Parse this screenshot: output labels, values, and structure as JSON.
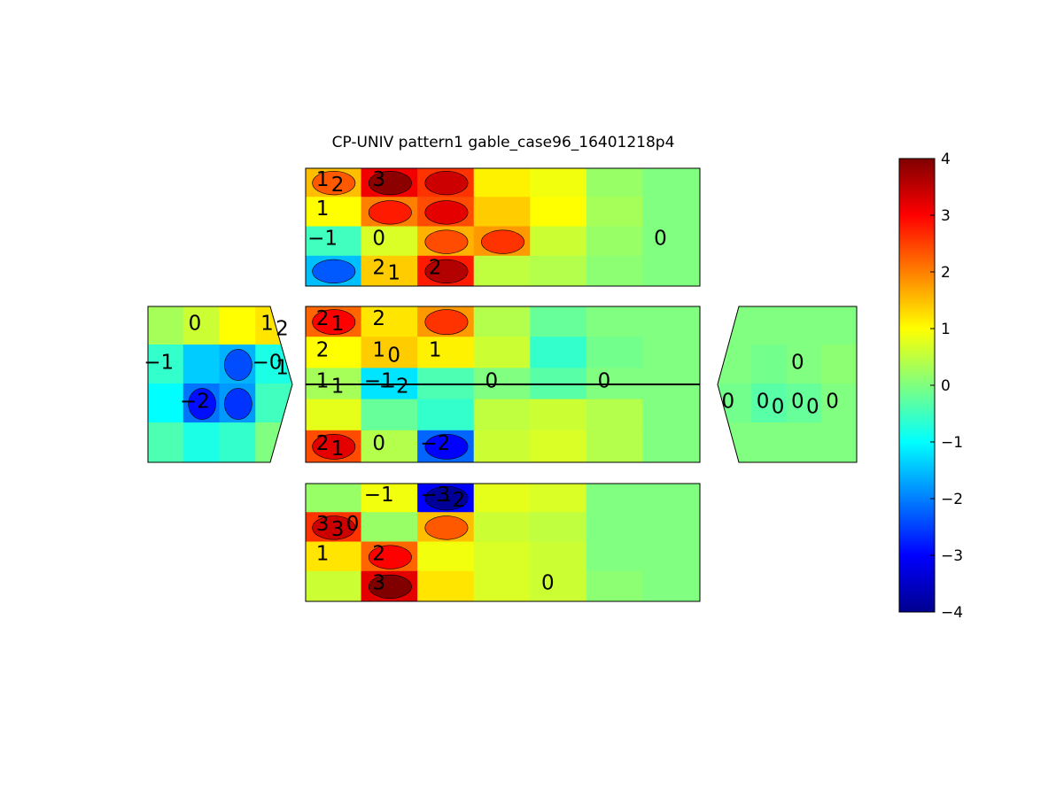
{
  "chart_data": {
    "type": "heatmap",
    "subtype": "filled-contour",
    "title": "CP-UNIV pattern1 gable_case96_16401218p4",
    "colormap": "jet",
    "colorbar": {
      "location": "right",
      "ticks": [
        "4",
        "3",
        "2",
        "1",
        "0",
        "−1",
        "−2",
        "−3",
        "−4"
      ],
      "range": [
        -4,
        4
      ]
    },
    "panels": [
      {
        "name": "top-roof",
        "shape": "rect",
        "levels": [
          [
            [
              0,
              1.5
            ],
            [
              1,
              3.1
            ],
            [
              2,
              2.6
            ],
            [
              3,
              1.1
            ],
            [
              4,
              0.9
            ],
            [
              5,
              0.2
            ],
            [
              6,
              0.0
            ]
          ],
          [
            [
              0,
              1.0
            ],
            [
              1,
              2.0
            ],
            [
              2,
              2.4
            ],
            [
              3,
              1.4
            ],
            [
              4,
              1.0
            ],
            [
              5,
              0.3
            ],
            [
              6,
              0.0
            ]
          ],
          [
            [
              0,
              -0.5
            ],
            [
              1,
              0.7
            ],
            [
              2,
              1.6
            ],
            [
              3,
              1.8
            ],
            [
              4,
              0.6
            ],
            [
              5,
              0.2
            ],
            [
              6,
              0.0
            ]
          ],
          [
            [
              0,
              -1.5
            ],
            [
              1,
              1.4
            ],
            [
              2,
              2.8
            ],
            [
              3,
              0.5
            ],
            [
              4,
              0.4
            ],
            [
              5,
              0.1
            ],
            [
              6,
              0.0
            ]
          ]
        ],
        "labels": [
          {
            "text": "1",
            "col": 0,
            "row": 0
          },
          {
            "text": "2",
            "col": 0,
            "row": 0
          },
          {
            "text": "3",
            "col": 1,
            "row": 0
          },
          {
            "text": "1",
            "col": 0,
            "row": 1
          },
          {
            "text": "−1",
            "col": 0,
            "row": 2
          },
          {
            "text": "0",
            "col": 1,
            "row": 2
          },
          {
            "text": "2",
            "col": 1,
            "row": 3
          },
          {
            "text": "1",
            "col": 1,
            "row": 3
          },
          {
            "text": "2",
            "col": 2,
            "row": 3
          },
          {
            "text": "0",
            "col": 6,
            "row": 2
          }
        ]
      },
      {
        "name": "middle-roof",
        "shape": "rect",
        "levels": [
          [
            [
              0,
              2.2
            ],
            [
              1,
              1.2
            ],
            [
              2,
              1.8
            ],
            [
              3,
              0.4
            ],
            [
              4,
              -0.2
            ],
            [
              5,
              0.0
            ],
            [
              6,
              0.0
            ]
          ],
          [
            [
              0,
              1.0
            ],
            [
              1,
              1.4
            ],
            [
              2,
              1.1
            ],
            [
              3,
              0.6
            ],
            [
              4,
              -0.6
            ],
            [
              5,
              -0.1
            ],
            [
              6,
              0.0
            ]
          ],
          [
            [
              0,
              0.3
            ],
            [
              1,
              -1.2
            ],
            [
              2,
              -0.4
            ],
            [
              3,
              0.0
            ],
            [
              4,
              -0.3
            ],
            [
              5,
              0.0
            ],
            [
              6,
              0.0
            ]
          ],
          [
            [
              0,
              0.8
            ],
            [
              1,
              -0.2
            ],
            [
              2,
              -0.6
            ],
            [
              3,
              0.5
            ],
            [
              4,
              0.6
            ],
            [
              5,
              0.4
            ],
            [
              6,
              0.0
            ]
          ],
          [
            [
              0,
              2.4
            ],
            [
              1,
              0.4
            ],
            [
              2,
              -2.2
            ],
            [
              3,
              0.6
            ],
            [
              4,
              0.7
            ],
            [
              5,
              0.4
            ],
            [
              6,
              0.0
            ]
          ]
        ],
        "labels": [
          {
            "text": "2",
            "col": 0,
            "row": 0
          },
          {
            "text": "1",
            "col": 0,
            "row": 0
          },
          {
            "text": "2",
            "col": 1,
            "row": 0
          },
          {
            "text": "2",
            "col": 0,
            "row": 1
          },
          {
            "text": "1",
            "col": 1,
            "row": 1
          },
          {
            "text": "0",
            "col": 1,
            "row": 1
          },
          {
            "text": "1",
            "col": 2,
            "row": 1
          },
          {
            "text": "−1",
            "col": 1,
            "row": 2
          },
          {
            "text": "−2",
            "col": 1,
            "row": 2
          },
          {
            "text": "1",
            "col": 0,
            "row": 2
          },
          {
            "text": "1",
            "col": 0,
            "row": 2
          },
          {
            "text": "0",
            "col": 3,
            "row": 2
          },
          {
            "text": "0",
            "col": 5,
            "row": 2
          },
          {
            "text": "2",
            "col": 0,
            "row": 4
          },
          {
            "text": "1",
            "col": 0,
            "row": 4
          },
          {
            "text": "0",
            "col": 1,
            "row": 4
          },
          {
            "text": "−2",
            "col": 2,
            "row": 4
          }
        ]
      },
      {
        "name": "bottom-roof",
        "shape": "rect",
        "levels": [
          [
            [
              0,
              0.2
            ],
            [
              1,
              0.9
            ],
            [
              2,
              -3.0
            ],
            [
              3,
              0.8
            ],
            [
              4,
              0.7
            ],
            [
              5,
              0.0
            ],
            [
              6,
              0.0
            ]
          ],
          [
            [
              0,
              2.6
            ],
            [
              1,
              0.2
            ],
            [
              2,
              1.5
            ],
            [
              3,
              0.6
            ],
            [
              4,
              0.5
            ],
            [
              5,
              0.0
            ],
            [
              6,
              0.0
            ]
          ],
          [
            [
              0,
              1.2
            ],
            [
              1,
              2.2
            ],
            [
              2,
              0.9
            ],
            [
              3,
              0.7
            ],
            [
              4,
              0.6
            ],
            [
              5,
              0.0
            ],
            [
              6,
              0.0
            ]
          ],
          [
            [
              0,
              0.6
            ],
            [
              1,
              3.2
            ],
            [
              2,
              1.2
            ],
            [
              3,
              0.7
            ],
            [
              4,
              0.6
            ],
            [
              5,
              0.1
            ],
            [
              6,
              0.0
            ]
          ]
        ],
        "labels": [
          {
            "text": "−1",
            "col": 1,
            "row": 0
          },
          {
            "text": "−3",
            "col": 2,
            "row": 0
          },
          {
            "text": "−2",
            "col": 2,
            "row": 0
          },
          {
            "text": "3",
            "col": 0,
            "row": 1
          },
          {
            "text": "3",
            "col": 0,
            "row": 1
          },
          {
            "text": "0",
            "col": 0,
            "row": 1
          },
          {
            "text": "1",
            "col": 0,
            "row": 2
          },
          {
            "text": "2",
            "col": 1,
            "row": 2
          },
          {
            "text": "3",
            "col": 1,
            "row": 3
          },
          {
            "text": "0",
            "col": 4,
            "row": 3
          }
        ]
      },
      {
        "name": "left-gable",
        "shape": "pentagon-left",
        "levels": [
          [
            [
              0,
              0.3
            ],
            [
              1,
              0.6
            ],
            [
              2,
              1.0
            ],
            [
              3,
              1.2
            ]
          ],
          [
            [
              0,
              -0.6
            ],
            [
              1,
              -1.4
            ],
            [
              2,
              -1.6
            ],
            [
              3,
              -0.8
            ]
          ],
          [
            [
              0,
              -1.0
            ],
            [
              1,
              -2.1
            ],
            [
              2,
              -1.8
            ],
            [
              3,
              -0.5
            ]
          ],
          [
            [
              0,
              -0.4
            ],
            [
              1,
              -0.8
            ],
            [
              2,
              -0.6
            ],
            [
              3,
              0.0
            ]
          ]
        ],
        "labels": [
          {
            "text": "0",
            "col": 1,
            "row": 0
          },
          {
            "text": "1",
            "col": 3,
            "row": 0
          },
          {
            "text": "2",
            "col": 3,
            "row": 0
          },
          {
            "text": "−1",
            "col": 0,
            "row": 1
          },
          {
            "text": "−0",
            "col": 3,
            "row": 1
          },
          {
            "text": "1",
            "col": 3,
            "row": 1
          },
          {
            "text": "−2",
            "col": 1,
            "row": 2
          }
        ]
      },
      {
        "name": "right-gable",
        "shape": "pentagon-right",
        "levels": [
          [
            [
              0,
              0.0
            ],
            [
              1,
              0.0
            ],
            [
              2,
              0.0
            ],
            [
              3,
              0.0
            ]
          ],
          [
            [
              0,
              0.0
            ],
            [
              1,
              -0.1
            ],
            [
              2,
              0.0
            ],
            [
              3,
              0.1
            ]
          ],
          [
            [
              0,
              -0.1
            ],
            [
              1,
              -0.3
            ],
            [
              2,
              -0.2
            ],
            [
              3,
              0.0
            ]
          ],
          [
            [
              0,
              0.0
            ],
            [
              1,
              0.0
            ],
            [
              2,
              0.0
            ],
            [
              3,
              0.0
            ]
          ]
        ],
        "labels": [
          {
            "text": "0",
            "col": 0,
            "row": 2
          },
          {
            "text": "0",
            "col": 1,
            "row": 2
          },
          {
            "text": "0",
            "col": 1,
            "row": 2
          },
          {
            "text": "0",
            "col": 2,
            "row": 2
          },
          {
            "text": "0",
            "col": 2,
            "row": 2
          },
          {
            "text": "0",
            "col": 2,
            "row": 1
          },
          {
            "text": "0",
            "col": 3,
            "row": 2
          }
        ]
      }
    ]
  }
}
